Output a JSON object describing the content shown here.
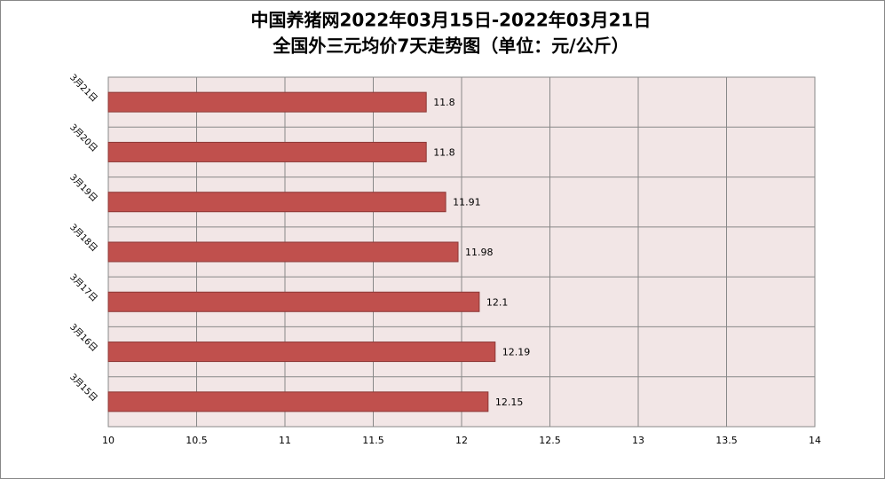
{
  "chart_data": {
    "type": "bar",
    "orientation": "horizontal",
    "title": "中国养猪网2022年03月15日-2022年03月21日",
    "subtitle": "全国外三元均价7天走势图（单位：元/公斤）",
    "categories": [
      "3月21日",
      "3月20日",
      "3月19日",
      "3月18日",
      "3月17日",
      "3月16日",
      "3月15日"
    ],
    "values": [
      11.8,
      11.8,
      11.91,
      11.98,
      12.1,
      12.19,
      12.15
    ],
    "color": "#c0504d",
    "xlim": [
      10,
      14
    ],
    "xticks": [
      10,
      10.5,
      11,
      11.5,
      12,
      12.5,
      13,
      13.5,
      14
    ],
    "grid": true
  }
}
